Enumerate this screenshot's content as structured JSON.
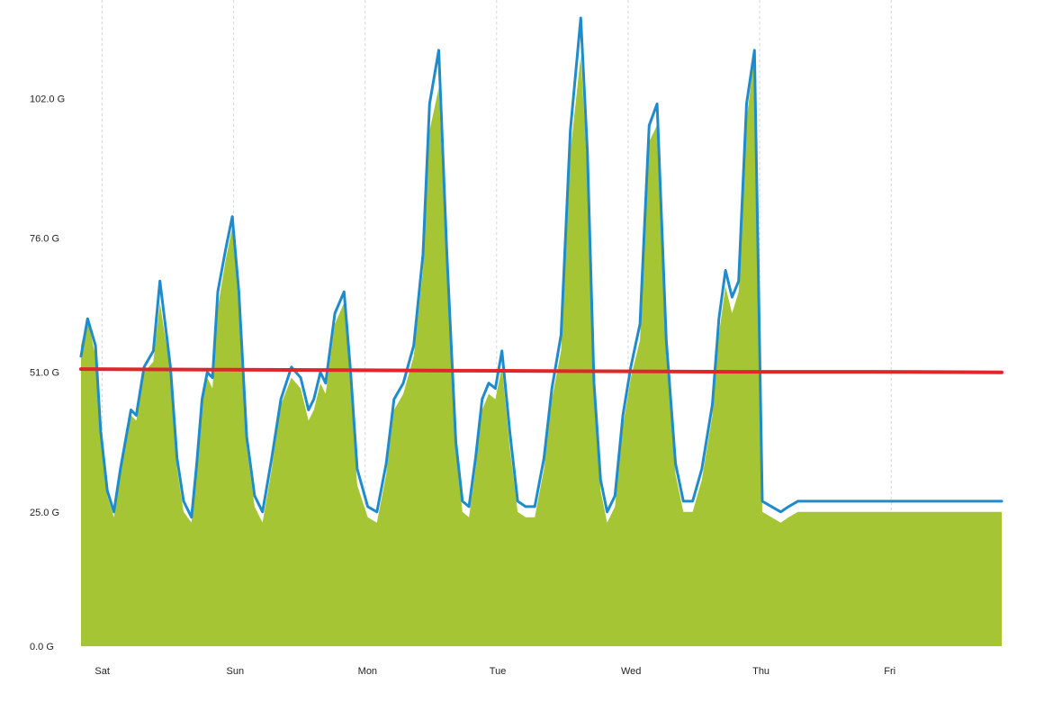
{
  "chart_data": {
    "type": "area",
    "title": "",
    "xlabel": "",
    "ylabel": "",
    "unit": "G",
    "ylim": [
      0,
      118
    ],
    "xlim": [
      0,
      7
    ],
    "grid": {
      "vertical": true,
      "horizontal": false,
      "style": "dashed"
    },
    "legend": "none",
    "y_ticks": [
      {
        "value": 0,
        "label": "0.0 G"
      },
      {
        "value": 25,
        "label": "25.0 G"
      },
      {
        "value": 51,
        "label": "51.0 G"
      },
      {
        "value": 76,
        "label": "76.0 G"
      },
      {
        "value": 102,
        "label": "102.0 G"
      }
    ],
    "x_ticks": [
      {
        "value": 0.16,
        "label": "Sat"
      },
      {
        "value": 1.16,
        "label": "Sun"
      },
      {
        "value": 2.16,
        "label": "Mon"
      },
      {
        "value": 3.16,
        "label": "Tue"
      },
      {
        "value": 4.16,
        "label": "Wed"
      },
      {
        "value": 5.16,
        "label": "Thu"
      },
      {
        "value": 6.16,
        "label": "Fri"
      }
    ],
    "series": [
      {
        "kind": "area",
        "color": "#a5c534",
        "x": [
          0.0,
          0.05,
          0.11,
          0.15,
          0.2,
          0.25,
          0.3,
          0.38,
          0.42,
          0.48,
          0.55,
          0.6,
          0.68,
          0.73,
          0.78,
          0.84,
          0.88,
          0.92,
          0.96,
          1.0,
          1.04,
          1.1,
          1.15,
          1.2,
          1.26,
          1.32,
          1.38,
          1.45,
          1.52,
          1.6,
          1.67,
          1.73,
          1.77,
          1.82,
          1.86,
          1.93,
          2.0,
          2.05,
          2.1,
          2.18,
          2.25,
          2.32,
          2.38,
          2.45,
          2.53,
          2.6,
          2.65,
          2.72,
          2.78,
          2.85,
          2.9,
          2.95,
          3.0,
          3.05,
          3.1,
          3.15,
          3.2,
          3.26,
          3.32,
          3.38,
          3.45,
          3.52,
          3.58,
          3.65,
          3.72,
          3.8,
          3.85,
          3.9,
          3.95,
          4.0,
          4.06,
          4.12,
          4.18,
          4.25,
          4.32,
          4.38,
          4.45,
          4.52,
          4.58,
          4.65,
          4.72,
          4.8,
          4.85,
          4.9,
          4.95,
          5.0,
          5.06,
          5.12,
          5.18,
          5.25,
          5.32,
          5.38,
          5.45,
          5.52,
          5.58,
          5.65,
          5.72,
          5.8,
          5.85,
          5.9,
          5.95,
          6.0,
          6.06,
          6.12,
          6.18,
          6.25,
          6.32,
          6.38,
          6.45,
          6.52,
          6.58,
          6.65,
          6.72,
          6.78,
          6.85,
          6.9,
          6.95,
          7.0
        ],
        "values": [
          56,
          61,
          54,
          38,
          28,
          24,
          32,
          43,
          42,
          51,
          53,
          64,
          51,
          33,
          25,
          23,
          32,
          45,
          50,
          48,
          63,
          72,
          78,
          63,
          37,
          26,
          23,
          33,
          45,
          50,
          48,
          42,
          44,
          49,
          47,
          60,
          64,
          48,
          30,
          24,
          23,
          32,
          44,
          47,
          54,
          70,
          96,
          104,
          70,
          36,
          25,
          24,
          33,
          44,
          47,
          46,
          52,
          37,
          25,
          24,
          24,
          33,
          46,
          55,
          92,
          110,
          88,
          46,
          29,
          23,
          26,
          41,
          50,
          57,
          94,
          97,
          54,
          32,
          25,
          25,
          31,
          43,
          58,
          67,
          62,
          66,
          98,
          110,
          25,
          24,
          23,
          24,
          25,
          25,
          25,
          25,
          25,
          25,
          25,
          25,
          25,
          25,
          25,
          25,
          25,
          25,
          25,
          25,
          25,
          25,
          25,
          25,
          25,
          25,
          25,
          25,
          25,
          25
        ]
      },
      {
        "kind": "line",
        "color": "#1e8ccc",
        "x": [
          0.0,
          0.05,
          0.11,
          0.15,
          0.2,
          0.25,
          0.3,
          0.38,
          0.42,
          0.48,
          0.55,
          0.6,
          0.68,
          0.73,
          0.78,
          0.84,
          0.88,
          0.92,
          0.96,
          1.0,
          1.04,
          1.1,
          1.15,
          1.2,
          1.26,
          1.32,
          1.38,
          1.45,
          1.52,
          1.6,
          1.67,
          1.73,
          1.77,
          1.82,
          1.86,
          1.93,
          2.0,
          2.05,
          2.1,
          2.18,
          2.25,
          2.32,
          2.38,
          2.45,
          2.53,
          2.6,
          2.65,
          2.72,
          2.78,
          2.85,
          2.9,
          2.95,
          3.0,
          3.05,
          3.1,
          3.15,
          3.2,
          3.26,
          3.32,
          3.38,
          3.45,
          3.52,
          3.58,
          3.65,
          3.72,
          3.8,
          3.85,
          3.9,
          3.95,
          4.0,
          4.06,
          4.12,
          4.18,
          4.25,
          4.32,
          4.38,
          4.45,
          4.52,
          4.58,
          4.65,
          4.72,
          4.8,
          4.85,
          4.9,
          4.95,
          5.0,
          5.06,
          5.12,
          5.18,
          5.25,
          5.32,
          5.38,
          5.45,
          5.52,
          5.58,
          5.65,
          5.72,
          5.8,
          5.85,
          5.9,
          5.95,
          6.0,
          6.06,
          6.12,
          6.18,
          6.25,
          6.32,
          6.38,
          6.45,
          6.52,
          6.58,
          6.65,
          6.72,
          6.78,
          6.85,
          6.9,
          6.95,
          7.0
        ],
        "values": [
          54,
          61,
          56,
          40,
          29,
          25,
          33,
          44,
          43,
          52,
          55,
          68,
          52,
          35,
          27,
          24,
          34,
          46,
          51,
          50,
          66,
          74,
          80,
          66,
          39,
          28,
          25,
          35,
          46,
          52,
          50,
          44,
          46,
          51,
          49,
          62,
          66,
          51,
          33,
          26,
          25,
          34,
          46,
          49,
          56,
          73,
          101,
          111,
          74,
          38,
          27,
          26,
          35,
          46,
          49,
          48,
          55,
          40,
          27,
          26,
          26,
          35,
          48,
          58,
          96,
          117,
          92,
          49,
          31,
          25,
          28,
          43,
          52,
          60,
          97,
          101,
          57,
          34,
          27,
          27,
          33,
          45,
          61,
          70,
          65,
          68,
          101,
          111,
          27,
          26,
          25,
          26,
          27,
          27,
          27,
          27,
          27,
          27,
          27,
          27,
          27,
          27,
          27,
          27,
          27,
          27,
          27,
          27,
          27,
          27,
          27,
          27,
          27,
          27,
          27,
          27,
          27,
          27
        ]
      },
      {
        "kind": "line",
        "color": "#e0262a",
        "x": [
          0.0,
          1.0,
          2.0,
          3.0,
          4.0,
          5.0,
          6.0,
          7.0
        ],
        "values": [
          51.6,
          51.5,
          51.4,
          51.3,
          51.2,
          51.1,
          51.1,
          51.0
        ]
      }
    ]
  }
}
